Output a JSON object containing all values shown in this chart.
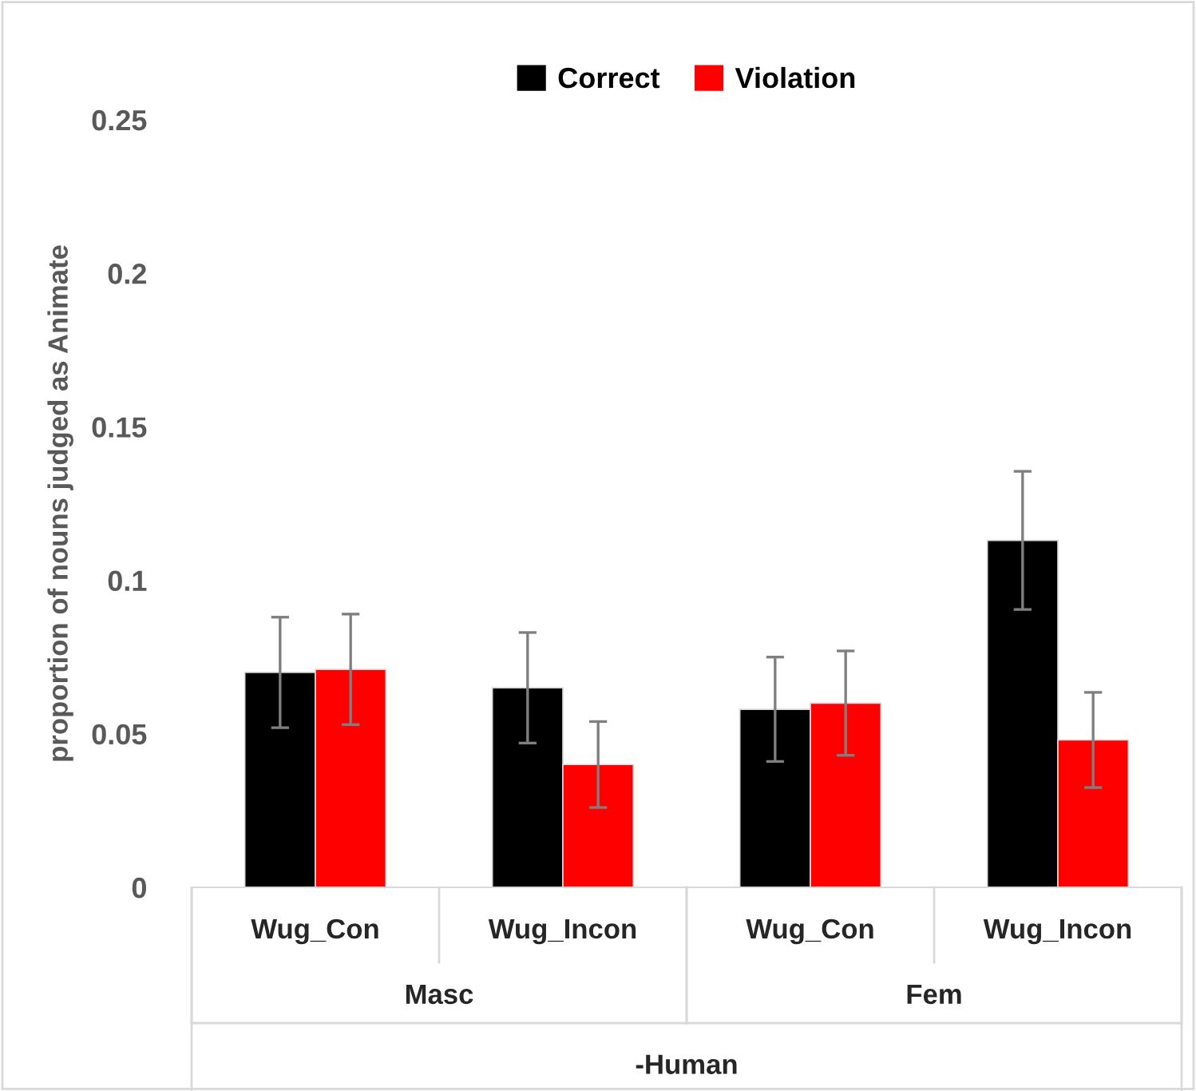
{
  "chart_data": {
    "type": "bar",
    "ylabel": "proportion of nouns judged as Animate",
    "categories": [
      "Wug_Con",
      "Wug_Incon",
      "Wug_Con",
      "Wug_Incon"
    ],
    "series": [
      {
        "name": "Correct",
        "color": "#000000",
        "values": [
          0.07,
          0.065,
          0.058,
          0.113
        ],
        "errors": [
          0.018,
          0.018,
          0.017,
          0.0225
        ]
      },
      {
        "name": "Violation",
        "color": "#ff0000",
        "values": [
          0.071,
          0.04,
          0.06,
          0.048
        ],
        "errors": [
          0.018,
          0.014,
          0.017,
          0.0155
        ]
      }
    ],
    "annotations": [
      "Masc",
      "Fem",
      "-Human"
    ],
    "ylim": [
      0,
      0.25
    ],
    "yticks": [
      0,
      0.05,
      {
        "value": 0.1,
        "label": "0.1"
      },
      0.15,
      {
        "value": 0.2,
        "label": "0.2"
      },
      0.25
    ],
    "grid": false,
    "legend": "top"
  }
}
